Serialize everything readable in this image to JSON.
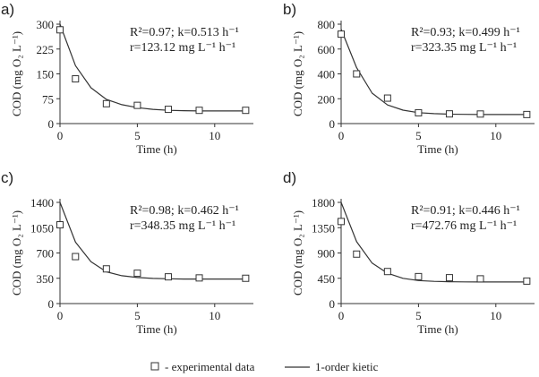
{
  "legend": {
    "experimental_label": "- experimental data",
    "model_label": "1-order kietic"
  },
  "chart_data": [
    {
      "type": "line",
      "panel_label": "a)",
      "xlabel": "Time (h)",
      "ylabel": "COD (mg O₂ L⁻¹)",
      "xlim": [
        0,
        12.5
      ],
      "ylim": [
        0,
        300
      ],
      "xticks": [
        0,
        5,
        10
      ],
      "yticks": [
        0,
        75,
        150,
        225,
        300
      ],
      "annotation": [
        "R²=0.97; k=0.513 h⁻¹",
        "r=123.12 mg L⁻¹ h⁻¹"
      ],
      "experimental": {
        "x": [
          0,
          1,
          3,
          5,
          7,
          9,
          12
        ],
        "y": [
          283,
          135,
          60,
          55,
          43,
          40,
          40
        ]
      },
      "model": {
        "x": [
          0,
          1,
          2,
          3,
          4,
          5,
          6,
          7,
          8,
          9,
          10,
          11,
          12
        ],
        "y": [
          300,
          175,
          108,
          73,
          57,
          48,
          43,
          40,
          39,
          38,
          38,
          38,
          38
        ]
      }
    },
    {
      "type": "line",
      "panel_label": "b)",
      "xlabel": "Time (h)",
      "ylabel": "COD (mg O₂ L⁻¹)",
      "xlim": [
        0,
        12.5
      ],
      "ylim": [
        0,
        800
      ],
      "xticks": [
        0,
        5,
        10
      ],
      "yticks": [
        0,
        200,
        400,
        600,
        800
      ],
      "annotation": [
        "R²=0.93; k=0.499 h⁻¹",
        "r=323.35 mg L⁻¹ h⁻¹"
      ],
      "experimental": {
        "x": [
          0,
          1,
          3,
          5,
          7,
          9,
          12
        ],
        "y": [
          720,
          400,
          205,
          87,
          78,
          77,
          73
        ]
      },
      "model": {
        "x": [
          0,
          1,
          2,
          3,
          4,
          5,
          6,
          7,
          8,
          9,
          10,
          11,
          12
        ],
        "y": [
          760,
          450,
          245,
          150,
          108,
          88,
          80,
          76,
          74,
          73,
          73,
          73,
          73
        ]
      }
    },
    {
      "type": "line",
      "panel_label": "c)",
      "xlabel": "Time (h)",
      "ylabel": "COD (mg O₂ L⁻¹)",
      "xlim": [
        0,
        12.5
      ],
      "ylim": [
        0,
        1400
      ],
      "xticks": [
        0,
        5,
        10
      ],
      "yticks": [
        0,
        350,
        700,
        1050,
        1400
      ],
      "annotation": [
        "R²=0.98; k=0.462 h⁻¹",
        "r=348.35 mg L⁻¹ h⁻¹"
      ],
      "experimental": {
        "x": [
          0,
          1,
          3,
          5,
          7,
          9,
          12
        ],
        "y": [
          1090,
          650,
          480,
          420,
          370,
          355,
          350
        ]
      },
      "model": {
        "x": [
          0,
          1,
          2,
          3,
          4,
          5,
          6,
          7,
          8,
          9,
          10,
          11,
          12
        ],
        "y": [
          1400,
          850,
          580,
          440,
          385,
          360,
          348,
          343,
          340,
          339,
          339,
          339,
          339
        ]
      }
    },
    {
      "type": "line",
      "panel_label": "d)",
      "xlabel": "Time (h)",
      "ylabel": "COD (mg O₂ L⁻¹)",
      "xlim": [
        0,
        12.5
      ],
      "ylim": [
        0,
        1800
      ],
      "xticks": [
        0,
        5,
        10
      ],
      "yticks": [
        0,
        450,
        900,
        1350,
        1800
      ],
      "annotation": [
        "R²=0.91; k=0.446 h⁻¹",
        "r=472.76 mg L⁻¹ h⁻¹"
      ],
      "experimental": {
        "x": [
          0,
          1,
          3,
          5,
          7,
          9,
          12
        ],
        "y": [
          1460,
          880,
          570,
          480,
          460,
          440,
          400
        ]
      },
      "model": {
        "x": [
          0,
          1,
          2,
          3,
          4,
          5,
          6,
          7,
          8,
          9,
          10,
          11,
          12
        ],
        "y": [
          1800,
          1100,
          720,
          540,
          450,
          410,
          395,
          388,
          385,
          384,
          384,
          384,
          384
        ]
      }
    }
  ]
}
